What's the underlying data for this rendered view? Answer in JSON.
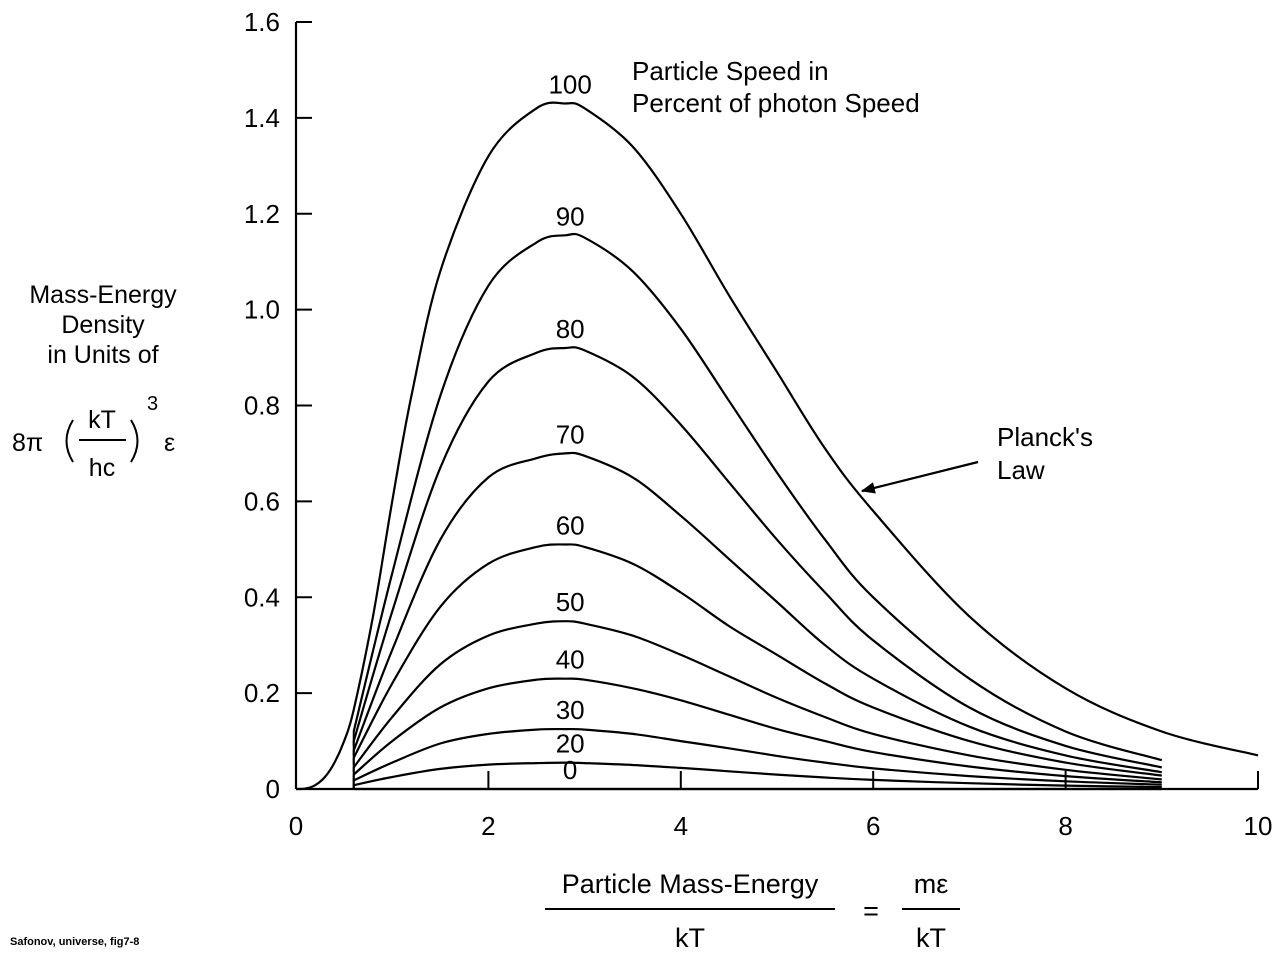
{
  "chart_data": {
    "type": "line",
    "title": "",
    "xlabel": {
      "numerator": "Particle Mass-Energy",
      "denominator": "kT",
      "equals": "=",
      "rhs_numerator": "mε",
      "rhs_denominator": "kT"
    },
    "ylabel": {
      "lines": [
        "Mass-Energy",
        "Density",
        "in Units of"
      ],
      "formula": {
        "coef": "8π",
        "frac_top": "kT",
        "frac_bottom": "hc",
        "exponent": "3",
        "suffix": "ε"
      }
    },
    "xlim": [
      0,
      10
    ],
    "ylim": [
      0,
      1.6
    ],
    "xticks": [
      "0",
      "2",
      "4",
      "6",
      "8",
      "10"
    ],
    "yticks": [
      "0",
      "0.2",
      "0.4",
      "0.6",
      "0.8",
      "1.0",
      "1.2",
      "1.4",
      "1.6"
    ],
    "series": [
      {
        "name": "Planck's Law",
        "x": [
          0,
          0.1,
          0.2,
          0.3,
          0.4,
          0.5,
          0.6,
          0.8,
          1.0,
          1.2,
          1.5,
          2.0,
          2.5,
          2.8,
          3.0,
          3.5,
          4.0,
          4.5,
          5.0,
          5.5,
          6.0,
          7.0,
          8.0,
          9.0,
          10.0
        ],
        "y": [
          0,
          0.001,
          0.008,
          0.025,
          0.055,
          0.1,
          0.165,
          0.36,
          0.6,
          0.82,
          1.08,
          1.32,
          1.42,
          1.43,
          1.42,
          1.34,
          1.2,
          1.03,
          0.87,
          0.71,
          0.58,
          0.36,
          0.21,
          0.12,
          0.07
        ]
      },
      {
        "name": "90",
        "x": [
          0.6,
          1.0,
          1.5,
          2.0,
          2.5,
          2.8,
          3.0,
          3.5,
          4.0,
          4.5,
          5.0,
          5.5,
          6.0,
          7.0,
          8.0,
          9.0
        ],
        "y": [
          0.12,
          0.45,
          0.82,
          1.05,
          1.14,
          1.155,
          1.15,
          1.08,
          0.96,
          0.81,
          0.66,
          0.52,
          0.4,
          0.23,
          0.12,
          0.06
        ]
      },
      {
        "name": "80",
        "x": [
          0.6,
          1.0,
          1.5,
          2.0,
          2.5,
          2.8,
          3.0,
          3.5,
          4.0,
          4.5,
          5.0,
          5.5,
          6.0,
          7.0,
          8.0,
          9.0
        ],
        "y": [
          0.1,
          0.37,
          0.67,
          0.85,
          0.91,
          0.92,
          0.915,
          0.86,
          0.76,
          0.64,
          0.52,
          0.41,
          0.31,
          0.17,
          0.09,
          0.045
        ]
      },
      {
        "name": "70",
        "x": [
          0.6,
          1.0,
          1.5,
          2.0,
          2.5,
          2.8,
          3.0,
          3.5,
          4.0,
          4.5,
          5.0,
          5.5,
          6.0,
          7.0,
          8.0,
          9.0
        ],
        "y": [
          0.08,
          0.29,
          0.52,
          0.65,
          0.69,
          0.7,
          0.695,
          0.65,
          0.57,
          0.48,
          0.39,
          0.3,
          0.23,
          0.13,
          0.07,
          0.035
        ]
      },
      {
        "name": "60",
        "x": [
          0.6,
          1.0,
          1.5,
          2.0,
          2.5,
          2.8,
          3.0,
          3.5,
          4.0,
          4.5,
          5.0,
          5.5,
          6.0,
          7.0,
          8.0,
          9.0
        ],
        "y": [
          0.065,
          0.22,
          0.38,
          0.47,
          0.505,
          0.51,
          0.505,
          0.47,
          0.41,
          0.34,
          0.28,
          0.22,
          0.17,
          0.1,
          0.055,
          0.028
        ]
      },
      {
        "name": "50",
        "x": [
          0.6,
          1.0,
          1.5,
          2.0,
          2.5,
          2.8,
          3.0,
          3.5,
          4.0,
          4.5,
          5.0,
          5.5,
          6.0,
          7.0,
          8.0,
          9.0
        ],
        "y": [
          0.045,
          0.15,
          0.26,
          0.32,
          0.345,
          0.35,
          0.345,
          0.32,
          0.28,
          0.235,
          0.19,
          0.15,
          0.115,
          0.07,
          0.04,
          0.02
        ]
      },
      {
        "name": "40",
        "x": [
          0.6,
          1.0,
          1.5,
          2.0,
          2.5,
          2.8,
          3.0,
          3.5,
          4.0,
          4.5,
          5.0,
          5.5,
          6.0,
          7.0,
          8.0,
          9.0
        ],
        "y": [
          0.03,
          0.1,
          0.17,
          0.21,
          0.228,
          0.23,
          0.228,
          0.21,
          0.185,
          0.155,
          0.125,
          0.1,
          0.077,
          0.047,
          0.027,
          0.014
        ]
      },
      {
        "name": "30",
        "x": [
          0.6,
          1.0,
          1.5,
          2.0,
          2.5,
          2.8,
          3.0,
          3.5,
          4.0,
          4.5,
          5.0,
          5.5,
          6.0,
          7.0,
          8.0,
          9.0
        ],
        "y": [
          0.018,
          0.055,
          0.095,
          0.115,
          0.124,
          0.125,
          0.124,
          0.115,
          0.1,
          0.085,
          0.069,
          0.055,
          0.043,
          0.027,
          0.016,
          0.009
        ]
      },
      {
        "name": "20",
        "x": [
          0.6,
          1.0,
          1.5,
          2.0,
          2.5,
          2.8,
          3.0,
          3.5,
          4.0,
          4.5,
          5.0,
          5.5,
          6.0,
          7.0,
          8.0,
          9.0
        ],
        "y": [
          0.008,
          0.025,
          0.042,
          0.051,
          0.054,
          0.055,
          0.054,
          0.05,
          0.044,
          0.037,
          0.03,
          0.024,
          0.019,
          0.012,
          0.007,
          0.004
        ]
      },
      {
        "name": "0",
        "x": [
          0.6,
          9.0
        ],
        "y": [
          0,
          0
        ]
      }
    ],
    "curve_labels": [
      "100",
      "90",
      "80",
      "70",
      "60",
      "50",
      "40",
      "30",
      "20",
      "0"
    ],
    "annotation_title": [
      "Particle Speed in",
      "Percent of photon Speed"
    ],
    "arrow_label": [
      "Planck's",
      "Law"
    ],
    "grid": false
  },
  "credit": "Safonov, universe, fig7-8"
}
